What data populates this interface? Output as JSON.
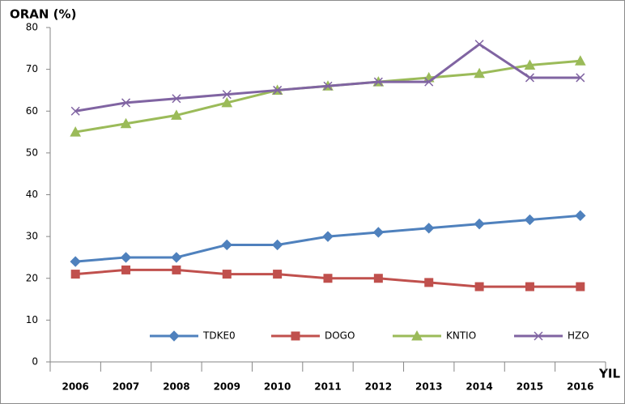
{
  "chart_data": {
    "type": "line",
    "y_label": "ORAN (%)",
    "x_label": "YIL",
    "categories": [
      "2006",
      "2007",
      "2008",
      "2009",
      "2010",
      "2011",
      "2012",
      "2013",
      "2014",
      "2015",
      "2016"
    ],
    "series": [
      {
        "name": "TDKE0",
        "color": "#4f81bd",
        "marker": "diamond",
        "values": [
          24,
          25,
          25,
          28,
          28,
          30,
          31,
          32,
          33,
          34,
          35
        ]
      },
      {
        "name": "DOGO",
        "color": "#c0504d",
        "marker": "square",
        "values": [
          21,
          22,
          22,
          21,
          21,
          20,
          20,
          19,
          18,
          18,
          18
        ]
      },
      {
        "name": "KNTIO",
        "color": "#9bbb59",
        "marker": "triangle",
        "values": [
          55,
          57,
          59,
          62,
          65,
          66,
          67,
          68,
          69,
          71,
          72
        ]
      },
      {
        "name": "HZO",
        "color": "#8064a2",
        "marker": "x",
        "values": [
          60,
          62,
          63,
          64,
          65,
          66,
          67,
          67,
          76,
          68,
          68
        ]
      }
    ],
    "ylim": [
      0,
      80
    ],
    "yticks": [
      0,
      10,
      20,
      30,
      40,
      50,
      60,
      70,
      80
    ],
    "grid": false,
    "legend": "bottom"
  }
}
